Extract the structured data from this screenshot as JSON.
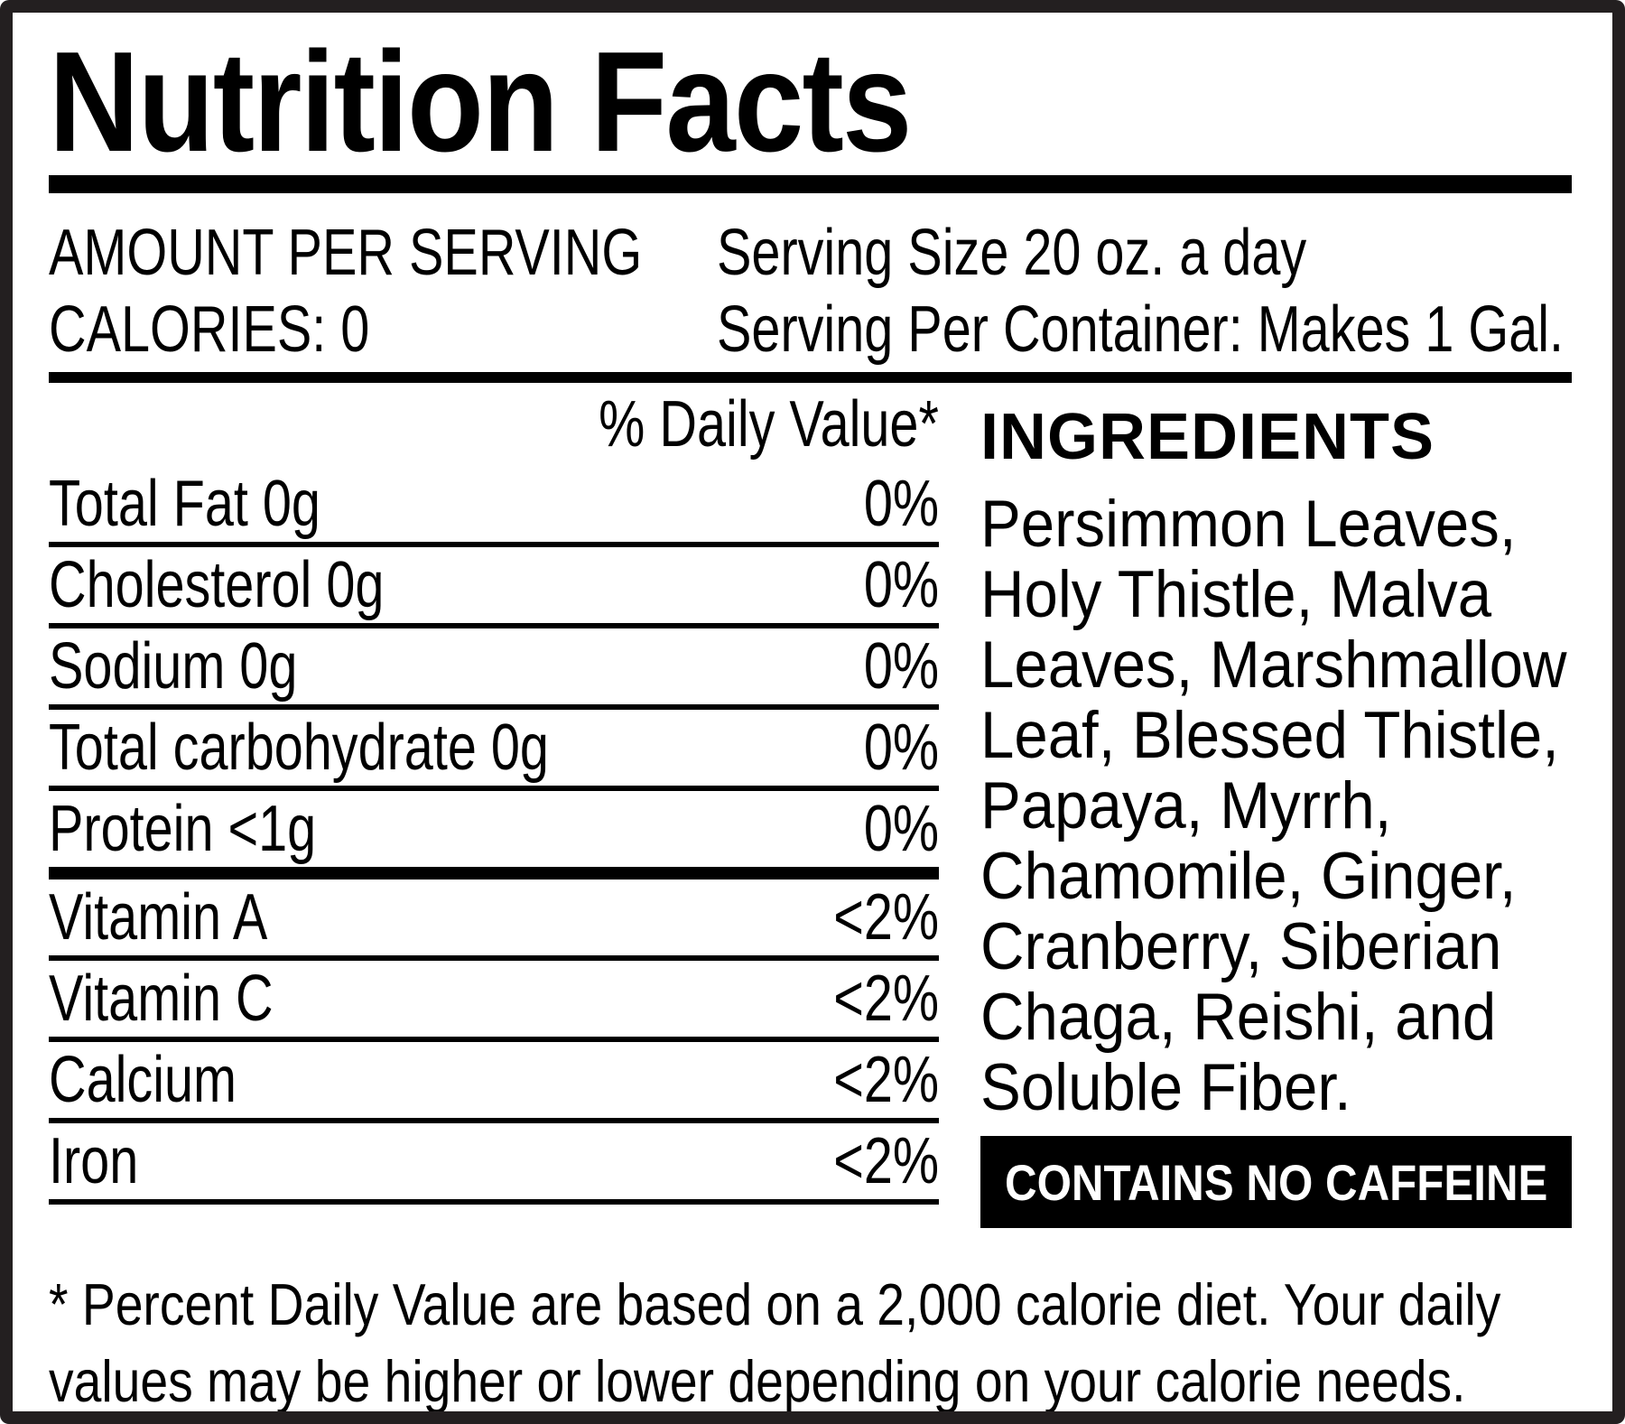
{
  "label": {
    "title": "Nutrition Facts",
    "serving": {
      "amount_per_serving": "AMOUNT PER SERVING",
      "calories": "CALORIES: 0",
      "serving_size": "Serving Size 20 oz. a day",
      "servings_per_container": "Serving Per Container: Makes 1 Gal."
    },
    "daily_value_header": "% Daily Value*",
    "nutrients": [
      {
        "name": "Total Fat 0g",
        "value": "0%"
      },
      {
        "name": "Cholesterol 0g",
        "value": "0%"
      },
      {
        "name": "Sodium 0g",
        "value": "0%"
      },
      {
        "name": "Total carbohydrate 0g",
        "value": "0%"
      },
      {
        "name": "Protein <1g",
        "value": "0%"
      },
      {
        "name": "Vitamin A",
        "value": "<2%"
      },
      {
        "name": "Vitamin C",
        "value": "<2%"
      },
      {
        "name": "Calcium",
        "value": "<2%"
      },
      {
        "name": "Iron",
        "value": "<2%"
      }
    ],
    "ingredients": {
      "heading": "INGREDIENTS",
      "text": "Persimmon Leaves,\nHoly Thistle, Malva\nLeaves, Marshmallow\nLeaf, Blessed Thistle,\nPapaya, Myrrh,\nChamomile, Ginger,\nCranberry, Siberian\nChaga, Reishi, and\nSoluble Fiber."
    },
    "badge": "CONTAINS NO CAFFEINE",
    "footnote": "* Percent Daily Value are based on a 2,000 calorie diet. Your daily\nvalues may be higher or lower depending on your calorie needs.",
    "colors": {
      "text": "#000000",
      "background": "#ffffff",
      "frame": "#231f20",
      "badge_bg": "#000000",
      "badge_text": "#ffffff"
    }
  }
}
